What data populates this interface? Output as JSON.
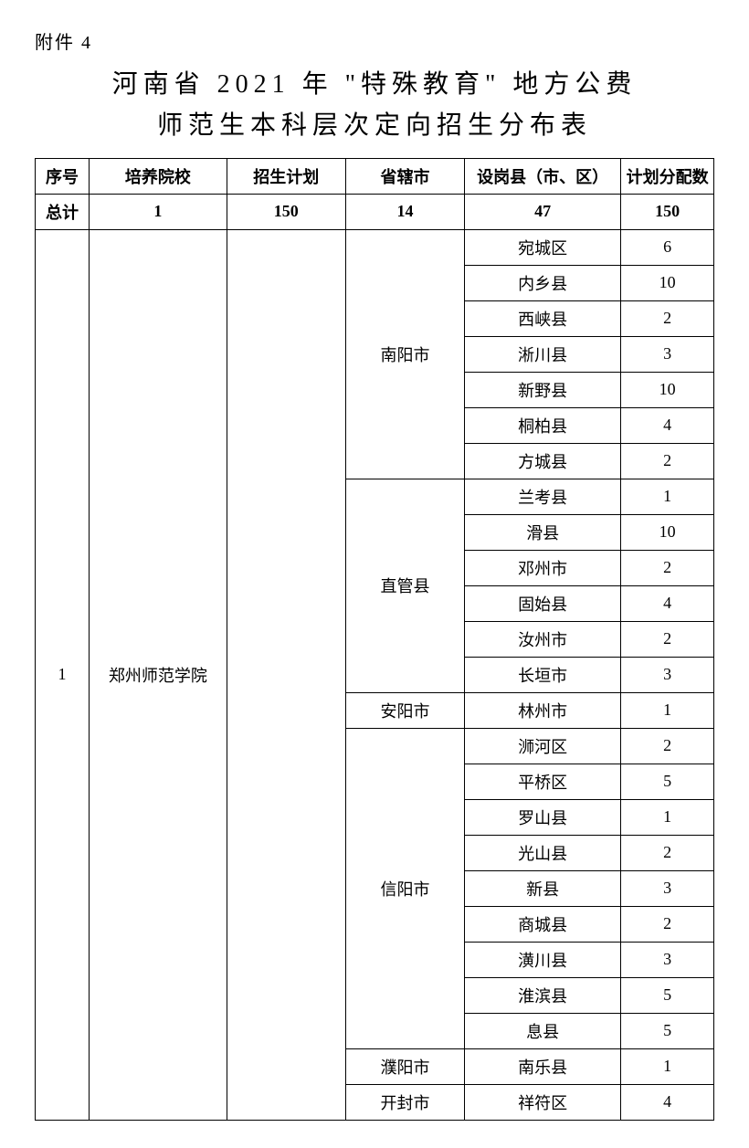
{
  "attachment_label": "附件 4",
  "title_line1": "河南省 2021 年 \"特殊教育\" 地方公费",
  "title_line2": "师范生本科层次定向招生分布表",
  "headers": {
    "seq": "序号",
    "school": "培养院校",
    "plan": "招生计划",
    "city": "省辖市",
    "county": "设岗县（市、区）",
    "allocation": "计划分配数"
  },
  "totals": {
    "label": "总计",
    "school_count": "1",
    "plan_total": "150",
    "city_count": "14",
    "county_count": "47",
    "allocation_total": "150"
  },
  "body": {
    "seq": "1",
    "school": "郑州师范学院",
    "groups": [
      {
        "city": "南阳市",
        "rows": [
          {
            "county": "宛城区",
            "alloc": "6"
          },
          {
            "county": "内乡县",
            "alloc": "10"
          },
          {
            "county": "西峡县",
            "alloc": "2"
          },
          {
            "county": "淅川县",
            "alloc": "3"
          },
          {
            "county": "新野县",
            "alloc": "10"
          },
          {
            "county": "桐柏县",
            "alloc": "4"
          },
          {
            "county": "方城县",
            "alloc": "2"
          }
        ]
      },
      {
        "city": "直管县",
        "rows": [
          {
            "county": "兰考县",
            "alloc": "1"
          },
          {
            "county": "滑县",
            "alloc": "10"
          },
          {
            "county": "邓州市",
            "alloc": "2"
          },
          {
            "county": "固始县",
            "alloc": "4"
          },
          {
            "county": "汝州市",
            "alloc": "2"
          },
          {
            "county": "长垣市",
            "alloc": "3"
          }
        ]
      },
      {
        "city": "安阳市",
        "rows": [
          {
            "county": "林州市",
            "alloc": "1"
          }
        ]
      },
      {
        "city": "信阳市",
        "rows": [
          {
            "county": "浉河区",
            "alloc": "2"
          },
          {
            "county": "平桥区",
            "alloc": "5"
          },
          {
            "county": "罗山县",
            "alloc": "1"
          },
          {
            "county": "光山县",
            "alloc": "2"
          },
          {
            "county": "新县",
            "alloc": "3"
          },
          {
            "county": "商城县",
            "alloc": "2"
          },
          {
            "county": "潢川县",
            "alloc": "3"
          },
          {
            "county": "淮滨县",
            "alloc": "5"
          },
          {
            "county": "息县",
            "alloc": "5"
          }
        ]
      },
      {
        "city": "濮阳市",
        "rows": [
          {
            "county": "南乐县",
            "alloc": "1"
          }
        ]
      },
      {
        "city": "开封市",
        "rows": [
          {
            "county": "祥符区",
            "alloc": "4"
          }
        ]
      }
    ]
  },
  "styles": {
    "font_family": "SimSun",
    "title_fontsize": 28,
    "header_fontsize": 18,
    "body_fontsize": 18,
    "border_color": "#000000",
    "background_color": "#ffffff",
    "text_color": "#000000"
  }
}
